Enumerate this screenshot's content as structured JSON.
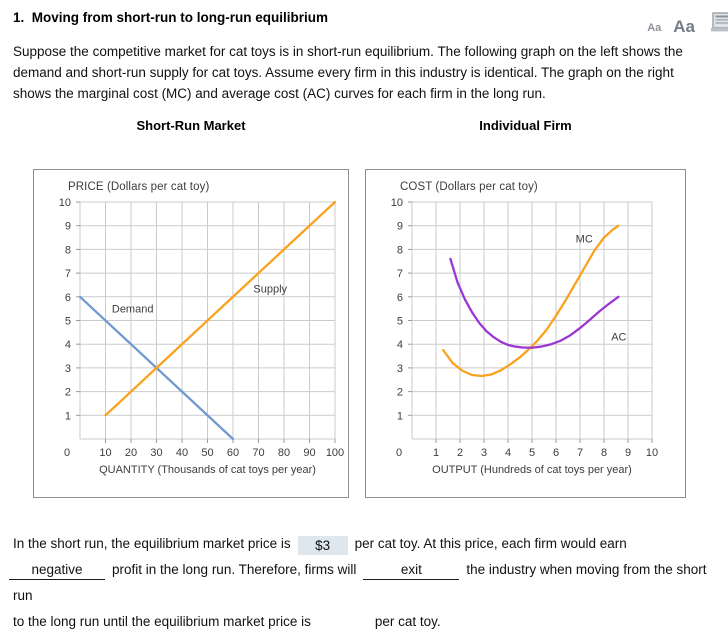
{
  "header": {
    "title": "1.  Moving from short-run to long-run equilibrium",
    "font_small": "Aa",
    "font_large": "Aa"
  },
  "intro": "Suppose the competitive market for cat toys is in short-run equilibrium. The following graph on the left shows the demand and short-run supply for cat toys. Assume every firm in this industry is identical. The graph on the right shows the marginal cost (MC) and average cost (AC) curves for each firm in the long run.",
  "chart_data": [
    {
      "type": "line",
      "title": "Short-Run Market",
      "axis_title": "PRICE (Dollars per cat toy)",
      "xlabel": "QUANTITY (Thousands of cat toys per year)",
      "xlim": [
        0,
        100
      ],
      "ylim": [
        0,
        10
      ],
      "xticks": [
        0,
        10,
        20,
        30,
        40,
        50,
        60,
        70,
        80,
        90,
        100
      ],
      "yticks": [
        1,
        2,
        3,
        4,
        5,
        6,
        7,
        8,
        9,
        10
      ],
      "grid": true,
      "series": [
        {
          "name": "Demand",
          "color": "#6f9ad1",
          "points": [
            [
              0,
              6
            ],
            [
              60,
              0
            ]
          ],
          "label_pos": [
            12.5,
            5.5
          ]
        },
        {
          "name": "Supply",
          "color": "#faa21e",
          "points": [
            [
              10,
              1
            ],
            [
              100,
              10
            ]
          ],
          "label_pos": [
            68,
            6.35
          ]
        }
      ]
    },
    {
      "type": "line",
      "title": "Individual Firm",
      "axis_title": "COST (Dollars per cat toy)",
      "xlabel": "OUTPUT (Hundreds of cat toys per year)",
      "xlim": [
        0,
        10
      ],
      "ylim": [
        0,
        10
      ],
      "xticks": [
        0,
        1,
        2,
        3,
        4,
        5,
        6,
        7,
        8,
        9,
        10
      ],
      "yticks": [
        1,
        2,
        3,
        4,
        5,
        6,
        7,
        8,
        9,
        10
      ],
      "grid": true,
      "series": [
        {
          "name": "MC",
          "color": "#faa21e",
          "points": [
            [
              1.3,
              3.75
            ],
            [
              1.7,
              3.2
            ],
            [
              2.1,
              2.88
            ],
            [
              2.5,
              2.7
            ],
            [
              2.9,
              2.66
            ],
            [
              3.3,
              2.72
            ],
            [
              3.7,
              2.9
            ],
            [
              4.1,
              3.15
            ],
            [
              4.5,
              3.45
            ],
            [
              4.9,
              3.82
            ],
            [
              5.2,
              4.12
            ],
            [
              5.6,
              4.6
            ],
            [
              6,
              5.2
            ],
            [
              6.4,
              5.85
            ],
            [
              6.8,
              6.55
            ],
            [
              7.2,
              7.25
            ],
            [
              7.6,
              7.95
            ],
            [
              8,
              8.5
            ],
            [
              8.35,
              8.82
            ],
            [
              8.6,
              9
            ]
          ],
          "label_pos": [
            6.82,
            8.45
          ]
        },
        {
          "name": "AC",
          "color": "#9b37d2",
          "points": [
            [
              1.6,
              7.6
            ],
            [
              1.9,
              6.6
            ],
            [
              2.2,
              5.9
            ],
            [
              2.5,
              5.35
            ],
            [
              2.8,
              4.9
            ],
            [
              3.1,
              4.55
            ],
            [
              3.4,
              4.3
            ],
            [
              3.7,
              4.1
            ],
            [
              4,
              3.97
            ],
            [
              4.3,
              3.9
            ],
            [
              4.6,
              3.86
            ],
            [
              5,
              3.85
            ],
            [
              5.4,
              3.9
            ],
            [
              5.8,
              4.0
            ],
            [
              6.2,
              4.15
            ],
            [
              6.6,
              4.38
            ],
            [
              7,
              4.68
            ],
            [
              7.4,
              5.02
            ],
            [
              7.8,
              5.38
            ],
            [
              8.2,
              5.7
            ],
            [
              8.6,
              6.0
            ]
          ],
          "label_pos": [
            8.3,
            4.32
          ]
        }
      ]
    }
  ],
  "answer": {
    "l1a": "In the short run, the equilibrium market price is",
    "blank1": "$3",
    "l1b": "per cat toy. At this price, each firm would earn",
    "blank2": "negative",
    "l2a": "profit in the long run. Therefore, firms will",
    "blank3": "exit",
    "l2b": "the industry when moving from the short run",
    "l3a": "to the long run until the equilibrium market price is",
    "blank4": "",
    "l3b": "per cat toy."
  },
  "colors": {
    "grid": "#cbcbcb",
    "chart_text": "#3d3d3d",
    "box_border": "#8f8f8f",
    "blank_fill": "#dde7ed",
    "demand": "#6f9ad1",
    "supply": "#faa21e",
    "ac": "#9b37d2"
  }
}
